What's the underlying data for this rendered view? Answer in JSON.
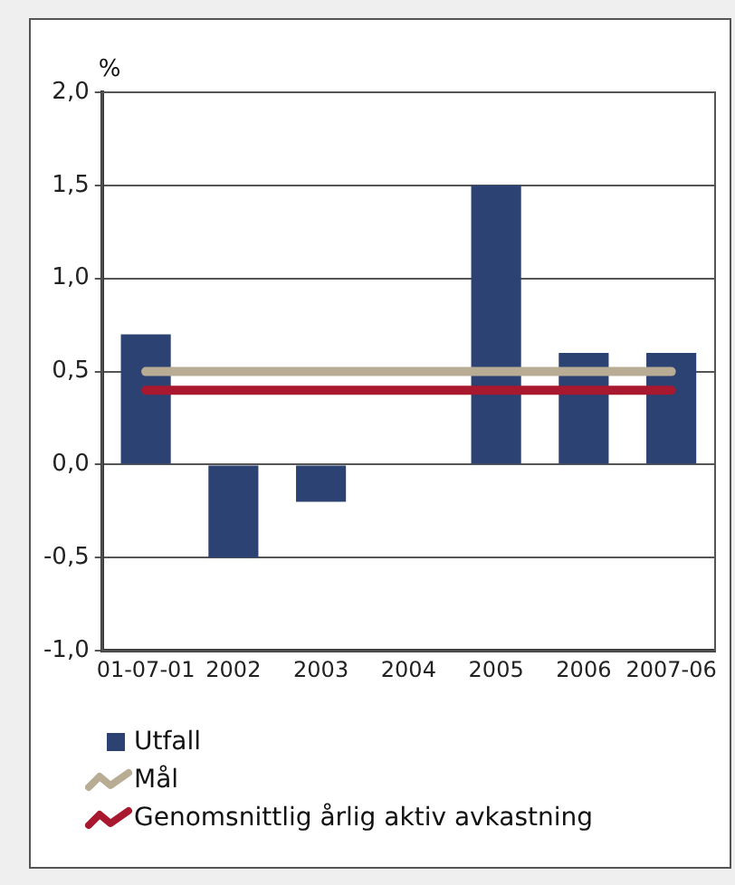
{
  "chart_data": {
    "type": "bar",
    "ylabel": "%",
    "categories": [
      "01-07-01",
      "2002",
      "2003",
      "2004",
      "2005",
      "2006",
      "2007-06"
    ],
    "series": [
      {
        "name": "Utfall",
        "color": "#2b4272",
        "values": [
          0.7,
          -0.5,
          -0.2,
          null,
          1.5,
          0.6,
          0.6
        ]
      },
      {
        "name": "Mål",
        "type": "line",
        "color": "#b8ad94",
        "values": [
          0.5,
          0.5,
          0.5,
          0.5,
          0.5,
          0.5,
          0.5
        ]
      },
      {
        "name": "Genomsnittlig årlig aktiv avkastning",
        "type": "line",
        "color": "#a8182e",
        "values": [
          0.4,
          0.4,
          0.4,
          0.4,
          0.4,
          0.4,
          0.4
        ]
      }
    ],
    "ylim": [
      -1,
      2
    ],
    "yticks": [
      {
        "value": -1,
        "label": "-1,0"
      },
      {
        "value": -0.5,
        "label": "-0,5"
      },
      {
        "value": 0,
        "label": "0,0"
      },
      {
        "value": 0.5,
        "label": "0,5"
      },
      {
        "value": 1,
        "label": "1,0"
      },
      {
        "value": 1.5,
        "label": "1,5"
      },
      {
        "value": 2,
        "label": "2,0"
      }
    ],
    "grid": "y",
    "legend": "bottom left",
    "marker": "none",
    "line_style": "solid"
  }
}
